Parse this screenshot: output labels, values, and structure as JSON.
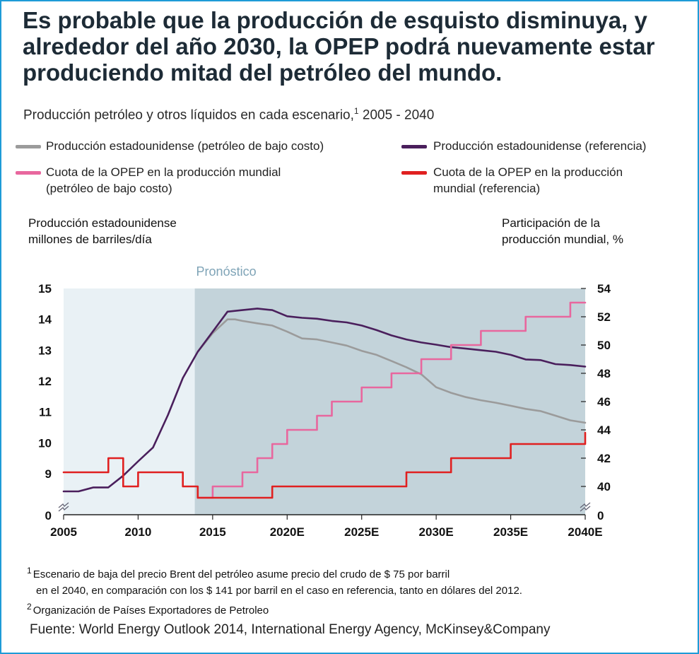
{
  "title": "Es probable que la producción de esquisto disminuya, y alrededor del año 2030, la OPEP podrá nuevamente estar produciendo mitad del petróleo del mundo.",
  "subtitle": "Producción petróleo y otros líquidos en cada escenario,",
  "subtitle_note": "1",
  "subtitle_range": "2005 - 2040",
  "legend": [
    {
      "label_1": "Producción estadounidense (petróleo de bajo costo)",
      "label_2": "",
      "color": "#9b9b9b"
    },
    {
      "label_1": "Producción estadounidense (referencia)",
      "label_2": "",
      "color": "#4a1f5c"
    },
    {
      "label_1": "Cuota de la OPEP en la producción mundial",
      "label_2": "(petróleo de bajo costo)",
      "color": "#e8679e"
    },
    {
      "label_1": "Cuota de la OPEP en la producción",
      "label_2": "mundial (referencia)",
      "color": "#e02020"
    }
  ],
  "left_axis_title_1": "Producción estadounidense",
  "left_axis_title_2": "millones de barriles/día",
  "right_axis_title_1": "Participación de la",
  "right_axis_title_2": "producción mundial, %",
  "forecast_label": "Pronóstico",
  "notes": {
    "n1_mark": "1",
    "n1_line1": "Escenario de baja del precio Brent del petróleo asume precio del crudo de $ 75 por barril",
    "n1_line2": "en el 2040, en comparación con los $ 141 por barril en el caso en referencia, tanto en dólares del 2012.",
    "n2_mark": "2",
    "n2_line1": "Organización de Países Exportadores de Petroleo"
  },
  "source": "Fuente: World Energy Outlook 2014, International Energy Agency, McKinsey&Company",
  "colors": {
    "history_bg": "#e9f1f5",
    "forecast_bg": "#c3d3da",
    "forecast_label": "#7fa4b7",
    "gray": "#9b9b9b",
    "purple": "#4a1f5c",
    "pink": "#e8679e",
    "red": "#e02020"
  },
  "chart_data": {
    "type": "line",
    "x_ticks": [
      {
        "x": 2005,
        "label": "2005"
      },
      {
        "x": 2010,
        "label": "2010"
      },
      {
        "x": 2015,
        "label": "2015"
      },
      {
        "x": 2020,
        "label": "2020E"
      },
      {
        "x": 2025,
        "label": "2025E"
      },
      {
        "x": 2030,
        "label": "2030E"
      },
      {
        "x": 2035,
        "label": "2035E"
      },
      {
        "x": 2040,
        "label": "2040E"
      }
    ],
    "xlim": [
      2005,
      2040
    ],
    "forecast_start": 2013.8,
    "left_axis": {
      "ticks": [
        9,
        10,
        11,
        12,
        13,
        14,
        15
      ],
      "break_label": "0",
      "ylim": [
        8.1,
        15
      ]
    },
    "right_axis": {
      "ticks": [
        40,
        42,
        44,
        46,
        48,
        50,
        52,
        54
      ],
      "break_label": "0",
      "ylim": [
        38,
        54
      ]
    },
    "series": [
      {
        "name": "Producción estadounidense (petróleo de bajo costo)",
        "axis": "left",
        "color": "#9b9b9b",
        "x": [
          2014,
          2015,
          2016,
          2016.5,
          2017,
          2018,
          2019,
          2020,
          2021,
          2022,
          2023,
          2024,
          2025,
          2026,
          2027,
          2028,
          2029,
          2030,
          2031,
          2032,
          2033,
          2034,
          2035,
          2036,
          2037,
          2038,
          2039,
          2040
        ],
        "y": [
          12.95,
          13.55,
          14.0,
          14.0,
          13.95,
          13.87,
          13.8,
          13.6,
          13.38,
          13.35,
          13.25,
          13.15,
          12.98,
          12.85,
          12.65,
          12.45,
          12.22,
          11.8,
          11.62,
          11.48,
          11.38,
          11.3,
          11.2,
          11.1,
          11.03,
          10.88,
          10.73,
          10.65
        ]
      },
      {
        "name": "Producción estadounidense (referencia)",
        "axis": "left",
        "color": "#4a1f5c",
        "x": [
          2005,
          2006,
          2007,
          2008,
          2009,
          2010,
          2011,
          2012,
          2013,
          2014,
          2015,
          2016,
          2017,
          2018,
          2019,
          2020,
          2021,
          2022,
          2023,
          2024,
          2025,
          2026,
          2027,
          2028,
          2029,
          2030,
          2031,
          2032,
          2033,
          2034,
          2035,
          2036,
          2037,
          2038,
          2039,
          2040
        ],
        "y": [
          8.55,
          8.55,
          8.65,
          8.65,
          8.95,
          9.4,
          9.85,
          10.9,
          12.1,
          12.95,
          13.6,
          14.25,
          14.3,
          14.35,
          14.3,
          14.1,
          14.05,
          14.02,
          13.95,
          13.9,
          13.8,
          13.65,
          13.48,
          13.35,
          13.25,
          13.18,
          13.1,
          13.05,
          13.0,
          12.95,
          12.85,
          12.7,
          12.68,
          12.55,
          12.52,
          12.47
        ]
      },
      {
        "name": "Cuota de la OPEP en la producción mundial (petróleo de bajo costo)",
        "axis": "right",
        "color": "#e8679e",
        "x": [
          2014,
          2015,
          2016,
          2017,
          2018,
          2019,
          2020,
          2021,
          2022,
          2023,
          2024,
          2025,
          2026,
          2027,
          2028,
          2029,
          2030,
          2031,
          2032,
          2033,
          2034,
          2035,
          2036,
          2037,
          2038,
          2039,
          2040
        ],
        "y": [
          39,
          40,
          40,
          41,
          42,
          43,
          44,
          44,
          45,
          46,
          46,
          47,
          47,
          48,
          48,
          49,
          49,
          50,
          50,
          51,
          51,
          51,
          52,
          52,
          52,
          53,
          53
        ]
      },
      {
        "name": "Cuota de la OPEP en la producción mundial (referencia)",
        "axis": "right",
        "color": "#e02020",
        "x": [
          2005,
          2006,
          2007,
          2008,
          2009,
          2010,
          2011,
          2012,
          2013,
          2014,
          2015,
          2016,
          2017,
          2018,
          2019,
          2020,
          2021,
          2022,
          2023,
          2024,
          2025,
          2026,
          2027,
          2028,
          2029,
          2030,
          2031,
          2032,
          2033,
          2034,
          2035,
          2036,
          2037,
          2038,
          2039,
          2040
        ],
        "y": [
          41,
          41,
          41,
          42,
          40,
          41,
          41,
          41,
          40,
          39,
          39,
          39,
          39,
          39,
          40,
          40,
          40,
          40,
          40,
          40,
          40,
          40,
          40,
          41,
          41,
          41,
          42,
          42,
          42,
          42,
          43,
          43,
          43,
          43,
          43,
          43.8
        ]
      }
    ]
  }
}
